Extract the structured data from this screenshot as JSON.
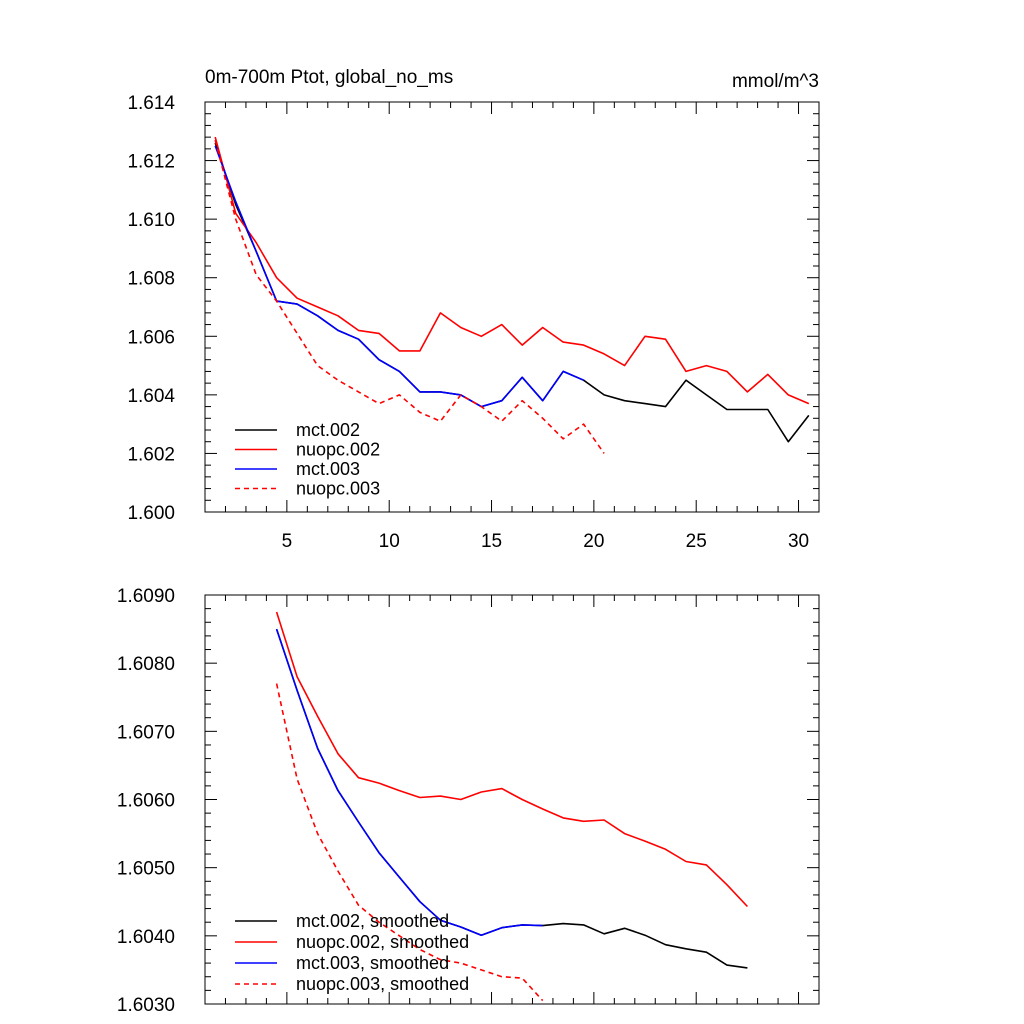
{
  "chart_data": [
    {
      "type": "line",
      "title": "0m-700m Ptot, global_no_ms",
      "units": "mmol/m^3",
      "xlim": [
        1,
        31
      ],
      "ylim": [
        1.6,
        1.614
      ],
      "xticks": [
        5,
        10,
        15,
        20,
        25,
        30
      ],
      "xtick_labels": [
        "5",
        "10",
        "15",
        "20",
        "25",
        "30"
      ],
      "yticks": [
        1.6,
        1.602,
        1.604,
        1.606,
        1.608,
        1.61,
        1.612,
        1.614
      ],
      "ytick_labels": [
        "1.600",
        "1.602",
        "1.604",
        "1.606",
        "1.608",
        "1.610",
        "1.612",
        "1.614"
      ],
      "legend_position": "bottom-left",
      "series": [
        {
          "name": "mct.002",
          "color": "#000000",
          "dash": "solid",
          "x": [
            1.5,
            2.5,
            3.5,
            4.5,
            5.5,
            6.5,
            7.5,
            8.5,
            9.5,
            10.5,
            11.5,
            12.5,
            13.5,
            14.5,
            15.5,
            16.5,
            17.5,
            18.5,
            19.5,
            20.5,
            21.5,
            22.5,
            23.5,
            24.5,
            25.5,
            26.5,
            27.5,
            28.5,
            29.5,
            30.5
          ],
          "y": [
            1.6126,
            1.6105,
            1.6089,
            1.6072,
            1.6071,
            1.6067,
            1.6062,
            1.6059,
            1.6052,
            1.6048,
            1.6041,
            1.6041,
            1.604,
            1.6036,
            1.6038,
            1.6046,
            1.6038,
            1.6048,
            1.6045,
            1.604,
            1.6038,
            1.6037,
            1.6036,
            1.6045,
            1.604,
            1.6035,
            1.6035,
            1.6035,
            1.6024,
            1.6033
          ]
        },
        {
          "name": "nuopc.002",
          "color": "#ff0000",
          "dash": "solid",
          "x": [
            1.5,
            2.5,
            3.5,
            4.5,
            5.5,
            6.5,
            7.5,
            8.5,
            9.5,
            10.5,
            11.5,
            12.5,
            13.5,
            14.5,
            15.5,
            16.5,
            17.5,
            18.5,
            19.5,
            20.5,
            21.5,
            22.5,
            23.5,
            24.5,
            25.5,
            26.5,
            27.5,
            28.5,
            29.5,
            30.5
          ],
          "y": [
            1.6128,
            1.6102,
            1.6092,
            1.608,
            1.6073,
            1.607,
            1.6067,
            1.6062,
            1.6061,
            1.6055,
            1.6055,
            1.6068,
            1.6063,
            1.606,
            1.6064,
            1.6057,
            1.6063,
            1.6058,
            1.6057,
            1.6054,
            1.605,
            1.606,
            1.6059,
            1.6048,
            1.605,
            1.6048,
            1.6041,
            1.6047,
            1.604,
            1.6037
          ]
        },
        {
          "name": "mct.003",
          "color": "#0000ff",
          "dash": "solid",
          "x": [
            1.5,
            2.5,
            3.5,
            4.5,
            5.5,
            6.5,
            7.5,
            8.5,
            9.5,
            10.5,
            11.5,
            12.5,
            13.5,
            14.5,
            15.5,
            16.5,
            17.5,
            18.5,
            19.5
          ],
          "y": [
            1.6125,
            1.6106,
            1.6089,
            1.6072,
            1.6071,
            1.6067,
            1.6062,
            1.6059,
            1.6052,
            1.6048,
            1.6041,
            1.6041,
            1.604,
            1.6036,
            1.6038,
            1.6046,
            1.6038,
            1.6048,
            1.6045
          ]
        },
        {
          "name": "nuopc.003",
          "color": "#ff0000",
          "dash": "dashed",
          "x": [
            1.5,
            2.5,
            3.5,
            4.5,
            5.5,
            6.5,
            7.5,
            8.5,
            9.5,
            10.5,
            11.5,
            12.5,
            13.5,
            14.5,
            15.5,
            16.5,
            17.5,
            18.5,
            19.5,
            20.5
          ],
          "y": [
            1.6127,
            1.61,
            1.6081,
            1.6072,
            1.6061,
            1.605,
            1.6045,
            1.6041,
            1.6037,
            1.604,
            1.6034,
            1.6031,
            1.604,
            1.6036,
            1.6031,
            1.6038,
            1.6032,
            1.6025,
            1.603,
            1.602
          ]
        }
      ]
    },
    {
      "type": "line",
      "title": "",
      "xlim": [
        1,
        31
      ],
      "ylim": [
        1.603,
        1.609
      ],
      "xticks": [
        5,
        10,
        15,
        20,
        25,
        30
      ],
      "xtick_labels": [],
      "yticks": [
        1.603,
        1.604,
        1.605,
        1.606,
        1.607,
        1.608,
        1.609
      ],
      "ytick_labels": [
        "1.6030",
        "1.6040",
        "1.6050",
        "1.6060",
        "1.6070",
        "1.6080",
        "1.6090"
      ],
      "legend_position": "bottom-left",
      "series": [
        {
          "name": "mct.002, smoothed",
          "color": "#000000",
          "dash": "solid",
          "x": [
            4.5,
            5.5,
            6.5,
            7.5,
            8.5,
            9.5,
            10.5,
            11.5,
            12.5,
            13.5,
            14.5,
            15.5,
            16.5,
            17.5,
            18.5,
            19.5,
            20.5,
            21.5,
            22.5,
            23.5,
            24.5,
            25.5,
            26.5,
            27.5
          ],
          "y": [
            1.6085,
            1.6076,
            1.60675,
            1.60613,
            1.60567,
            1.60522,
            1.60486,
            1.6045,
            1.60423,
            1.60413,
            1.60401,
            1.60412,
            1.60416,
            1.60415,
            1.60418,
            1.60416,
            1.60403,
            1.60411,
            1.60401,
            1.60387,
            1.60381,
            1.60376,
            1.60357,
            1.60353
          ]
        },
        {
          "name": "nuopc.002, smoothed",
          "color": "#ff0000",
          "dash": "solid",
          "x": [
            4.5,
            5.5,
            6.5,
            7.5,
            8.5,
            9.5,
            10.5,
            11.5,
            12.5,
            13.5,
            14.5,
            15.5,
            16.5,
            17.5,
            18.5,
            19.5,
            20.5,
            21.5,
            22.5,
            23.5,
            24.5,
            25.5,
            26.5,
            27.5
          ],
          "y": [
            1.60875,
            1.6078,
            1.60722,
            1.60667,
            1.60632,
            1.60624,
            1.60613,
            1.60603,
            1.60605,
            1.606,
            1.60611,
            1.60616,
            1.606,
            1.60586,
            1.60573,
            1.60568,
            1.6057,
            1.6055,
            1.60539,
            1.60527,
            1.60509,
            1.60504,
            1.60475,
            1.60443
          ]
        },
        {
          "name": "mct.003, smoothed",
          "color": "#0000ff",
          "dash": "solid",
          "x": [
            4.5,
            5.5,
            6.5,
            7.5,
            8.5,
            9.5,
            10.5,
            11.5,
            12.5,
            13.5,
            14.5,
            15.5,
            16.5,
            17.5
          ],
          "y": [
            1.6085,
            1.6076,
            1.60675,
            1.60613,
            1.60567,
            1.60522,
            1.60486,
            1.6045,
            1.60423,
            1.60413,
            1.60401,
            1.60412,
            1.60416,
            1.60415
          ]
        },
        {
          "name": "nuopc.003, smoothed",
          "color": "#ff0000",
          "dash": "dashed",
          "x": [
            4.5,
            5.5,
            6.5,
            7.5,
            8.5,
            9.5,
            10.5,
            11.5,
            12.5,
            13.5,
            14.5,
            15.5,
            16.5,
            17.5
          ],
          "y": [
            1.6077,
            1.6063,
            1.6055,
            1.60495,
            1.60445,
            1.6042,
            1.604,
            1.6038,
            1.60365,
            1.6036,
            1.6035,
            1.6034,
            1.60338,
            1.60305
          ]
        }
      ]
    }
  ]
}
